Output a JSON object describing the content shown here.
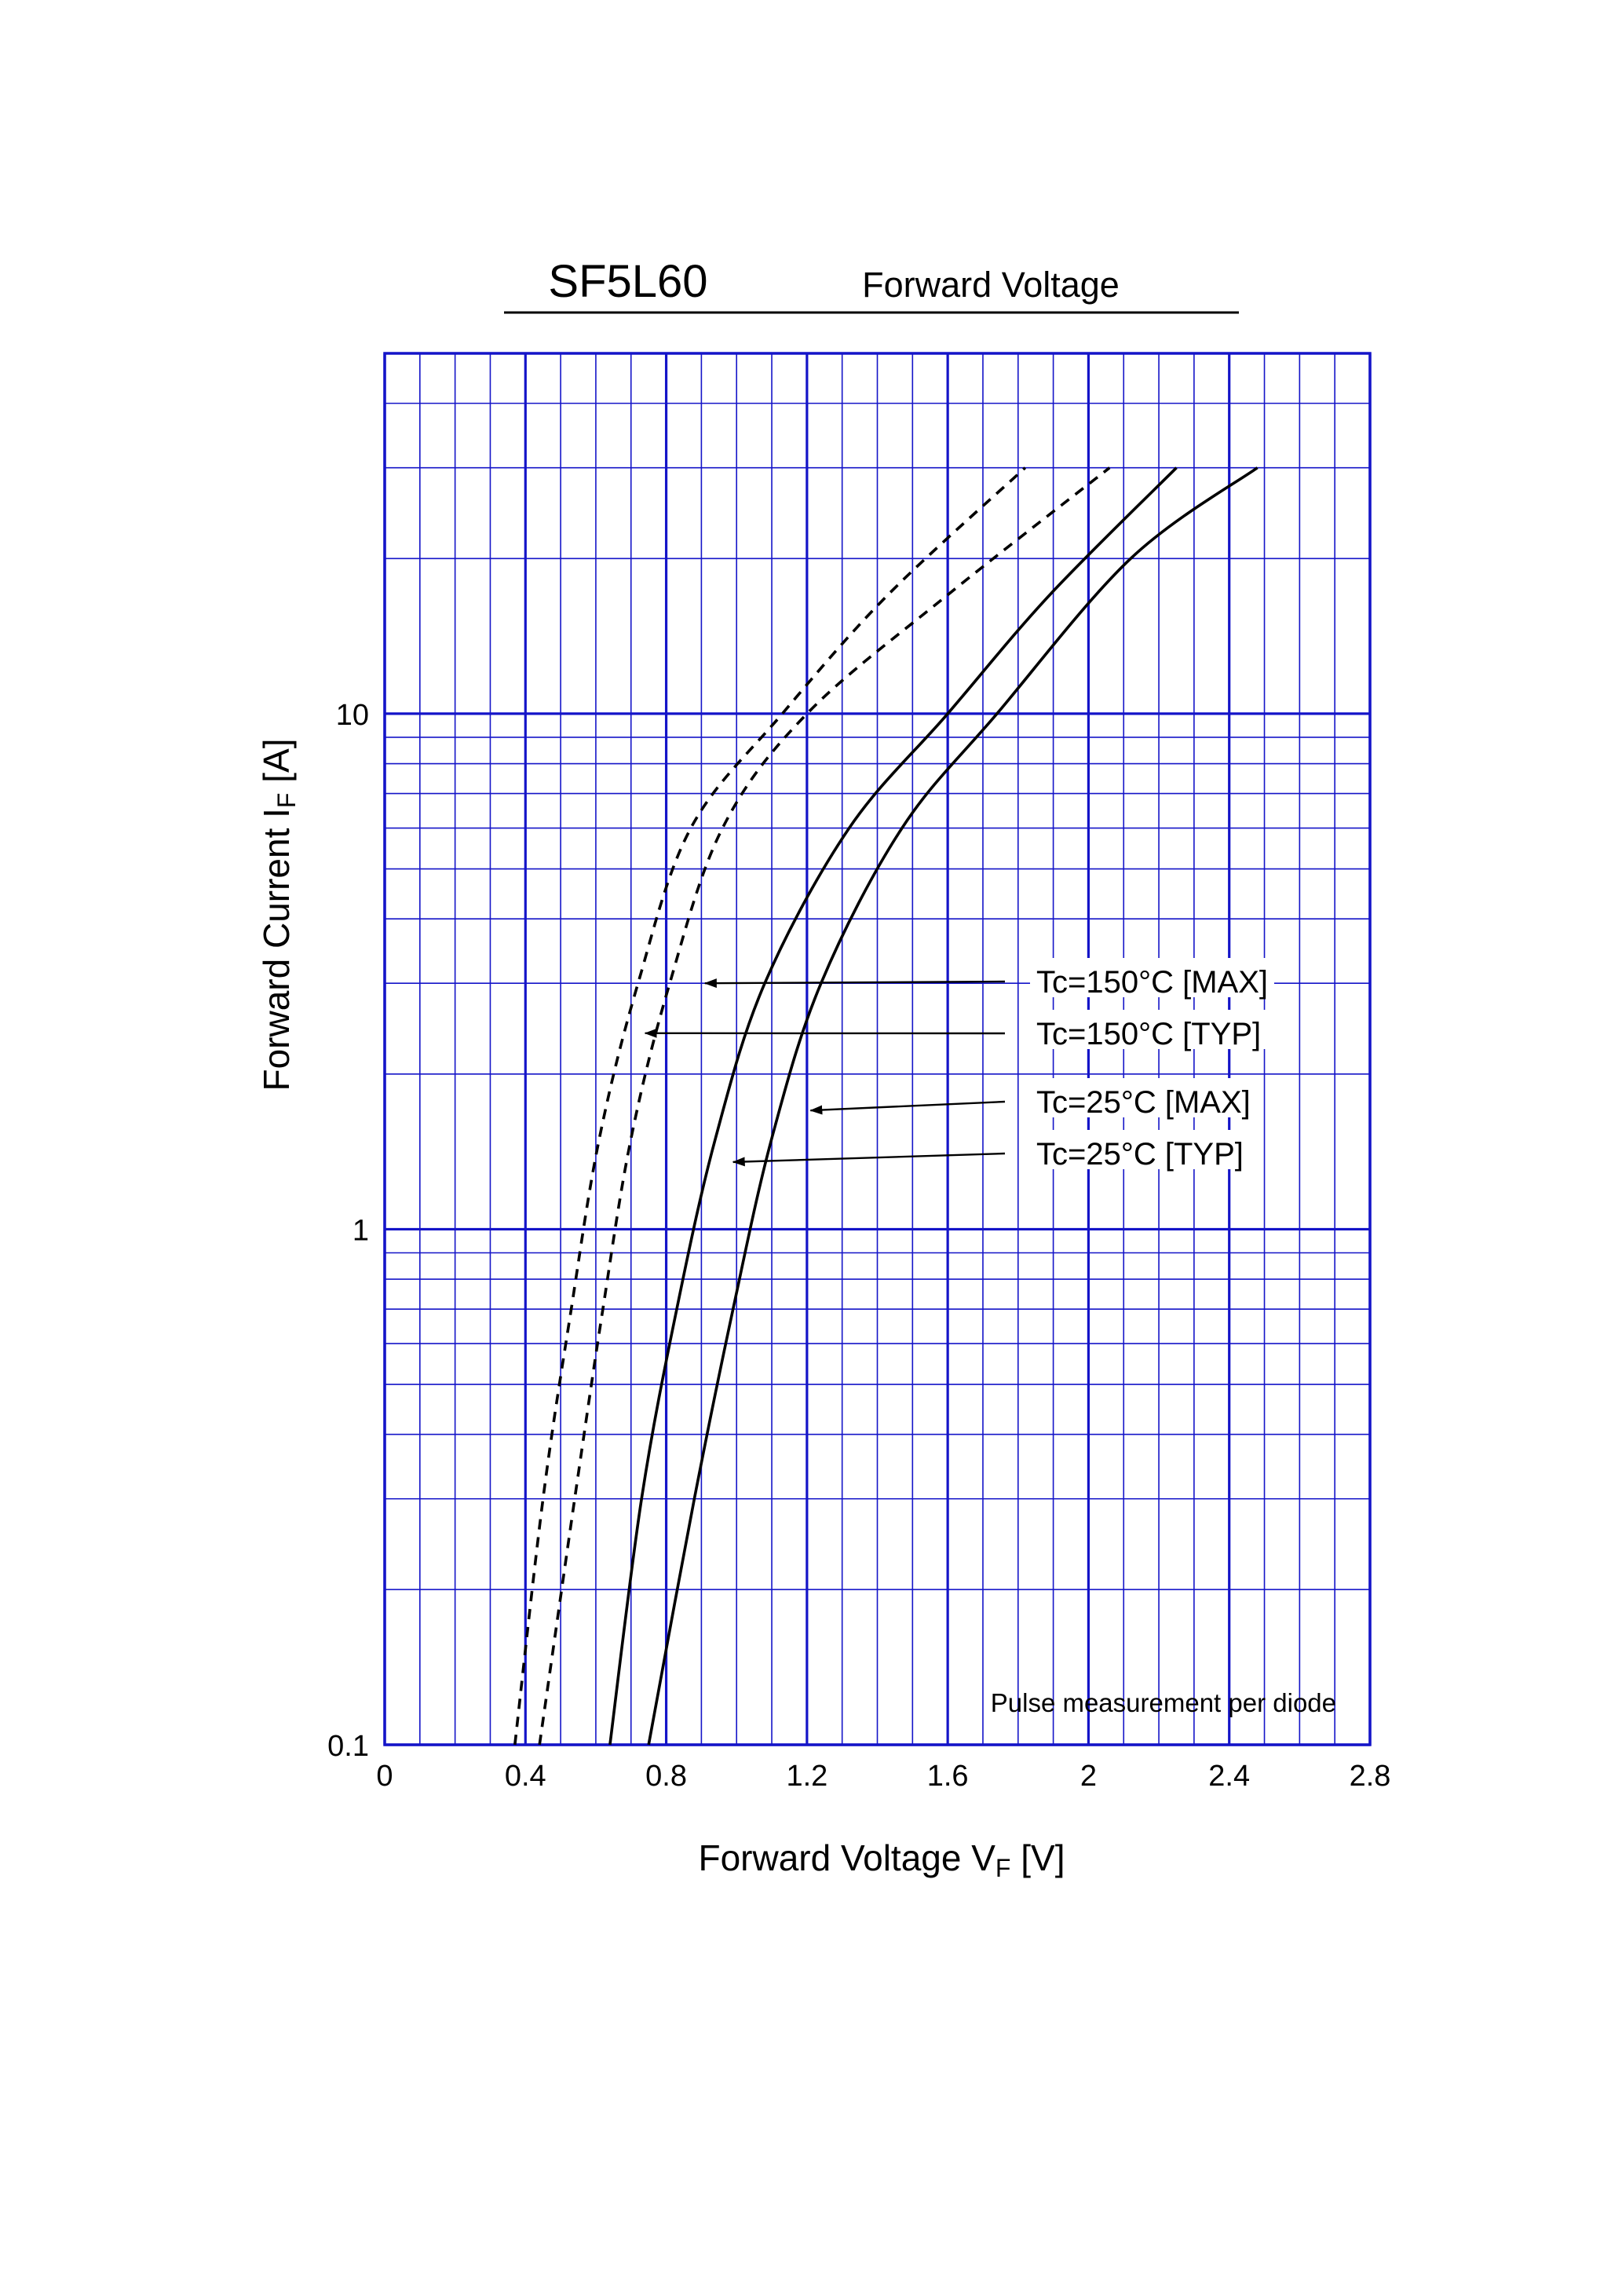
{
  "header": {
    "part_number": "SF5L60",
    "chart_name": "Forward Voltage"
  },
  "chart_data": {
    "type": "line",
    "title": "SF5L60 Forward Voltage",
    "xlabel": "Forward Voltage VF [V]",
    "ylabel": "Forward Current IF [A]",
    "x_axis": {
      "name": "Forward Voltage",
      "symbol": "V",
      "subscript": "F",
      "unit": "[V]",
      "scale": "linear",
      "range": [
        0,
        2.8
      ],
      "ticks": [
        0,
        0.4,
        0.8,
        1.2,
        1.6,
        2.0,
        2.4,
        2.8
      ],
      "tick_labels": [
        "0",
        "0.4",
        "0.8",
        "1.2",
        "1.6",
        "2",
        "2.4",
        "2.8"
      ]
    },
    "y_axis": {
      "name": "Forward Current",
      "symbol": "I",
      "subscript": "F",
      "unit": "[A]",
      "scale": "log",
      "range": [
        0.1,
        50
      ],
      "ticks": [
        0.1,
        1,
        10
      ],
      "tick_labels": [
        "0.1",
        "1",
        "10"
      ]
    },
    "grid": true,
    "grid_color": "#1414c8",
    "note": "Pulse measurement per diode",
    "series": [
      {
        "name": "Tc=150°C [TYP]",
        "style": "dashed",
        "points": [
          [
            0.37,
            0.1
          ],
          [
            0.45,
            0.3
          ],
          [
            0.53,
            0.7
          ],
          [
            0.61,
            1.5
          ],
          [
            0.72,
            3.0
          ],
          [
            0.87,
            6.0
          ],
          [
            1.13,
            10.0
          ],
          [
            1.43,
            17.0
          ],
          [
            1.82,
            30.0
          ]
        ]
      },
      {
        "name": "Tc=150°C [MAX]",
        "style": "dashed",
        "points": [
          [
            0.44,
            0.1
          ],
          [
            0.54,
            0.3
          ],
          [
            0.62,
            0.7
          ],
          [
            0.7,
            1.5
          ],
          [
            0.81,
            3.0
          ],
          [
            0.96,
            6.0
          ],
          [
            1.2,
            10.0
          ],
          [
            1.6,
            17.0
          ],
          [
            2.06,
            30.0
          ]
        ]
      },
      {
        "name": "Tc=25°C [TYP]",
        "style": "solid",
        "points": [
          [
            0.64,
            0.1
          ],
          [
            0.73,
            0.3
          ],
          [
            0.83,
            0.7
          ],
          [
            0.94,
            1.5
          ],
          [
            1.08,
            3.0
          ],
          [
            1.32,
            6.0
          ],
          [
            1.6,
            10.0
          ],
          [
            1.89,
            17.0
          ],
          [
            2.25,
            30.0
          ]
        ]
      },
      {
        "name": "Tc=25°C [MAX]",
        "style": "solid",
        "points": [
          [
            0.75,
            0.1
          ],
          [
            0.88,
            0.3
          ],
          [
            0.99,
            0.7
          ],
          [
            1.1,
            1.5
          ],
          [
            1.24,
            3.0
          ],
          [
            1.47,
            6.0
          ],
          [
            1.74,
            10.0
          ],
          [
            2.12,
            20.0
          ],
          [
            2.48,
            30.0
          ]
        ]
      }
    ],
    "annotations": [
      {
        "text": "Tc=150°C [MAX]",
        "arrow_to": [
          0.91,
          3.0
        ]
      },
      {
        "text": "Tc=150°C [TYP]",
        "arrow_to": [
          0.74,
          2.4
        ]
      },
      {
        "text": "Tc=25°C [MAX]",
        "arrow_to": [
          1.21,
          1.7
        ]
      },
      {
        "text": "Tc=25°C [TYP]",
        "arrow_to": [
          0.99,
          1.35
        ]
      }
    ]
  }
}
